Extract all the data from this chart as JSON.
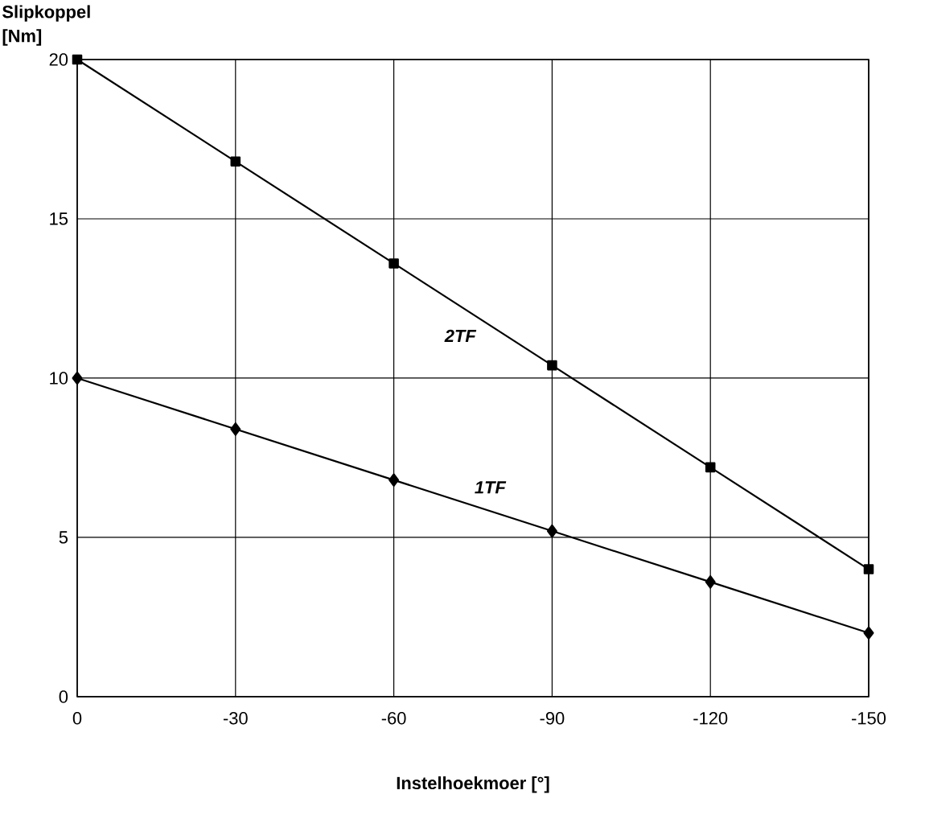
{
  "chart_data": {
    "type": "line",
    "xlabel": "Instelhoekmoer [°]",
    "ylabel": "Slipkoppel [Nm]",
    "x": [
      0,
      -30,
      -60,
      -90,
      -120,
      -150
    ],
    "series": [
      {
        "name": "2TF",
        "color": "#000000",
        "marker": "square",
        "values": [
          20,
          16.8,
          13.6,
          10.4,
          7.2,
          4.0
        ]
      },
      {
        "name": "1TF",
        "color": "#000000",
        "marker": "diamond",
        "values": [
          10,
          8.4,
          6.8,
          5.2,
          3.6,
          2.0
        ]
      }
    ],
    "xlim": [
      0,
      -150
    ],
    "ylim": [
      0,
      20
    ],
    "xticks": [
      0,
      -30,
      -60,
      -90,
      -120,
      -150
    ],
    "yticks": [
      0,
      5,
      10,
      15,
      20
    ],
    "grid": true
  }
}
